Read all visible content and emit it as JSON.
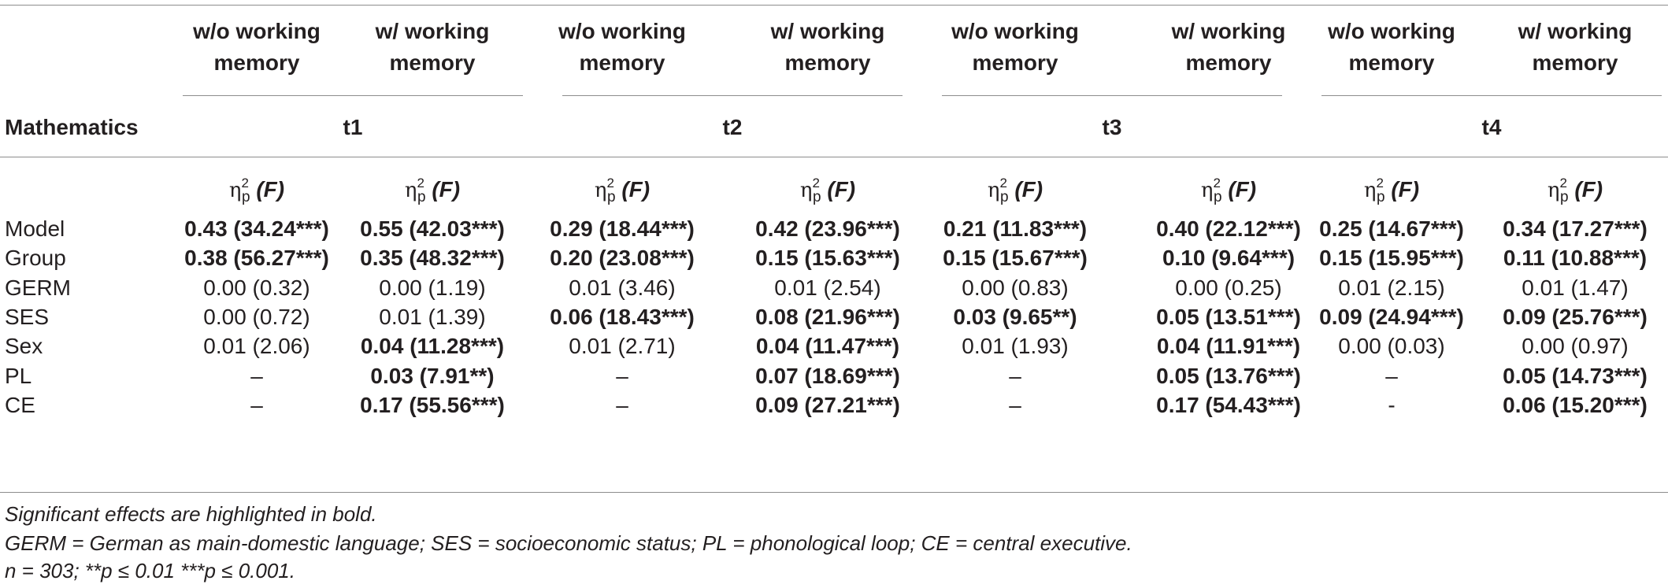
{
  "table": {
    "corner_label": "Mathematics",
    "time_points": [
      "t1",
      "t2",
      "t3",
      "t4"
    ],
    "conditions": [
      {
        "line1": "w/o working",
        "line2": "memory"
      },
      {
        "line1": "w/ working",
        "line2": "memory"
      },
      {
        "line1": "w/o working",
        "line2": "memory"
      },
      {
        "line1": "w/ working",
        "line2": "memory"
      },
      {
        "line1": "w/o working",
        "line2": "memory"
      },
      {
        "line1": "w/ working",
        "line2": "memory"
      },
      {
        "line1": "w/o working",
        "line2": "memory"
      },
      {
        "line1": "w/ working",
        "line2": "memory"
      }
    ],
    "stat_header": {
      "symbol": "η",
      "superscript": "2",
      "subscript": "p",
      "f_label": "(F)"
    },
    "rows": [
      {
        "label": "Model",
        "cells": [
          {
            "text": "0.43 (34.24***)",
            "bold": true
          },
          {
            "text": "0.55 (42.03***)",
            "bold": true
          },
          {
            "text": "0.29 (18.44***)",
            "bold": true
          },
          {
            "text": "0.42 (23.96***)",
            "bold": true
          },
          {
            "text": "0.21 (11.83***)",
            "bold": true
          },
          {
            "text": "0.40 (22.12***)",
            "bold": true
          },
          {
            "text": "0.25 (14.67***)",
            "bold": true
          },
          {
            "text": "0.34 (17.27***)",
            "bold": true
          }
        ]
      },
      {
        "label": "Group",
        "cells": [
          {
            "text": "0.38 (56.27***)",
            "bold": true
          },
          {
            "text": "0.35 (48.32***)",
            "bold": true
          },
          {
            "text": "0.20 (23.08***)",
            "bold": true
          },
          {
            "text": "0.15 (15.63***)",
            "bold": true
          },
          {
            "text": "0.15 (15.67***)",
            "bold": true
          },
          {
            "text": "0.10 (9.64***)",
            "bold": true
          },
          {
            "text": "0.15 (15.95***)",
            "bold": true
          },
          {
            "text": "0.11 (10.88***)",
            "bold": true
          }
        ]
      },
      {
        "label": "GERM",
        "cells": [
          {
            "text": "0.00 (0.32)",
            "bold": false
          },
          {
            "text": "0.00 (1.19)",
            "bold": false
          },
          {
            "text": "0.01 (3.46)",
            "bold": false
          },
          {
            "text": "0.01 (2.54)",
            "bold": false
          },
          {
            "text": "0.00 (0.83)",
            "bold": false
          },
          {
            "text": "0.00 (0.25)",
            "bold": false
          },
          {
            "text": "0.01 (2.15)",
            "bold": false
          },
          {
            "text": "0.01 (1.47)",
            "bold": false
          }
        ]
      },
      {
        "label": "SES",
        "cells": [
          {
            "text": "0.00 (0.72)",
            "bold": false
          },
          {
            "text": "0.01 (1.39)",
            "bold": false
          },
          {
            "text": "0.06 (18.43***)",
            "bold": true
          },
          {
            "text": "0.08 (21.96***)",
            "bold": true
          },
          {
            "text": "0.03 (9.65**)",
            "bold": true
          },
          {
            "text": "0.05 (13.51***)",
            "bold": true
          },
          {
            "text": "0.09 (24.94***)",
            "bold": true
          },
          {
            "text": "0.09 (25.76***)",
            "bold": true
          }
        ]
      },
      {
        "label": "Sex",
        "cells": [
          {
            "text": "0.01 (2.06)",
            "bold": false
          },
          {
            "text": "0.04 (11.28***)",
            "bold": true
          },
          {
            "text": "0.01 (2.71)",
            "bold": false
          },
          {
            "text": "0.04 (11.47***)",
            "bold": true
          },
          {
            "text": "0.01 (1.93)",
            "bold": false
          },
          {
            "text": "0.04 (11.91***)",
            "bold": true
          },
          {
            "text": "0.00 (0.03)",
            "bold": false
          },
          {
            "text": "0.00 (0.97)",
            "bold": false
          }
        ]
      },
      {
        "label": "PL",
        "cells": [
          {
            "text": "–",
            "bold": false
          },
          {
            "text": "0.03 (7.91**)",
            "bold": true
          },
          {
            "text": "–",
            "bold": false
          },
          {
            "text": "0.07 (18.69***)",
            "bold": true
          },
          {
            "text": "–",
            "bold": false
          },
          {
            "text": "0.05 (13.76***)",
            "bold": true
          },
          {
            "text": "–",
            "bold": false
          },
          {
            "text": "0.05 (14.73***)",
            "bold": true
          }
        ]
      },
      {
        "label": "CE",
        "cells": [
          {
            "text": "–",
            "bold": false
          },
          {
            "text": "0.17 (55.56***)",
            "bold": true
          },
          {
            "text": "–",
            "bold": false
          },
          {
            "text": "0.09 (27.21***)",
            "bold": true
          },
          {
            "text": "–",
            "bold": false
          },
          {
            "text": "0.17 (54.43***)",
            "bold": true
          },
          {
            "text": "-",
            "bold": false
          },
          {
            "text": "0.06 (15.20***)",
            "bold": true
          }
        ]
      }
    ]
  },
  "footnotes": [
    "Significant effects are highlighted in bold.",
    "GERM = German as main-domestic language; SES = socioeconomic status; PL = phonological loop; CE = central executive.",
    "n = 303; **p ≤ 0.01 ***p ≤ 0.001."
  ]
}
